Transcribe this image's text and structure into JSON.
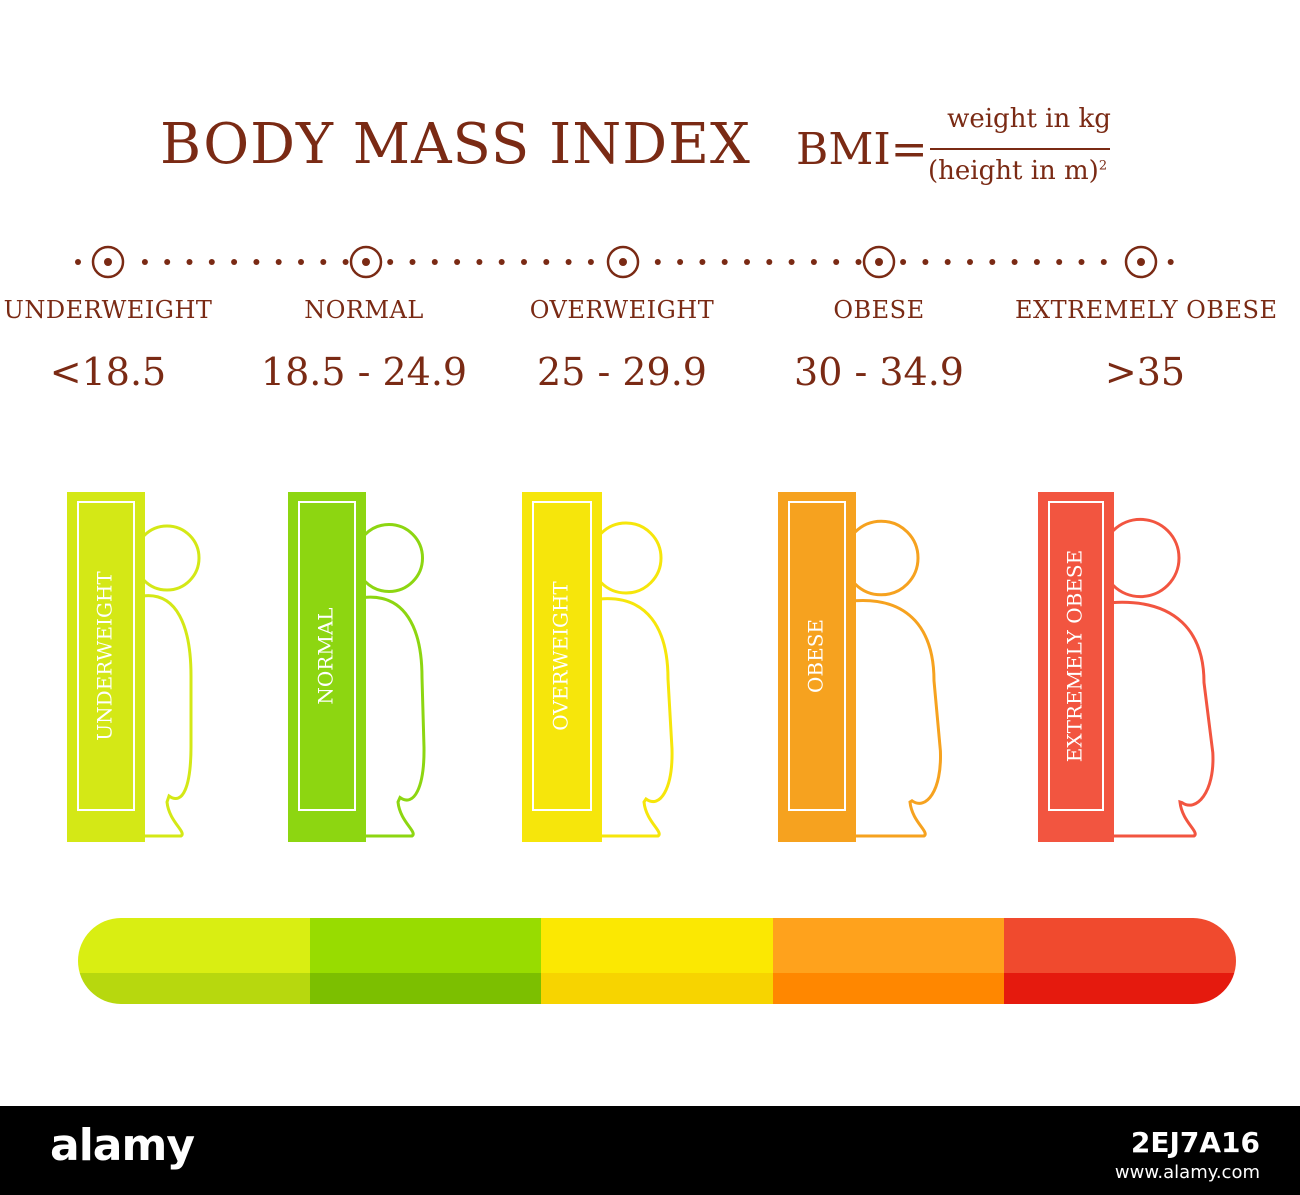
{
  "header": {
    "title": "BODY MASS INDEX",
    "formula_lhs": "BMI=",
    "formula_numerator": "weight in kg",
    "formula_denominator": "(height in m)",
    "formula_exponent": "2"
  },
  "categories": [
    {
      "label": "UNDERWEIGHT",
      "range": "<18.5",
      "book_label": "UNDERWEIGHT",
      "color": "#d4e816"
    },
    {
      "label": "NORMAL",
      "range": "18.5 - 24.9",
      "book_label": "NORMAL",
      "color": "#8dd611"
    },
    {
      "label": "OVERWEIGHT",
      "range": "25 - 29.9",
      "book_label": "OVERWEIGHT",
      "color": "#f6e60b"
    },
    {
      "label": "OBESE",
      "range": "30 - 34.9",
      "book_label": "OBESE",
      "color": "#f6a21f"
    },
    {
      "label": "EXTREMELY OBESE",
      "range": ">35",
      "book_label": "EXTREMELY OBESE",
      "color": "#f25540"
    }
  ],
  "scale_colors": [
    {
      "top": "#d9ee12",
      "bottom": "#b7d80e"
    },
    {
      "top": "#98dc00",
      "bottom": "#7cbf00"
    },
    {
      "top": "#fbe802",
      "bottom": "#f7d400"
    },
    {
      "top": "#ffa21c",
      "bottom": "#ff8700"
    },
    {
      "top": "#f04a2e",
      "bottom": "#e51a0e"
    }
  ],
  "text_color": "#7a2a14",
  "footer": {
    "logo": "alamy",
    "image_id": "2EJ7A16",
    "url": "www.alamy.com"
  }
}
